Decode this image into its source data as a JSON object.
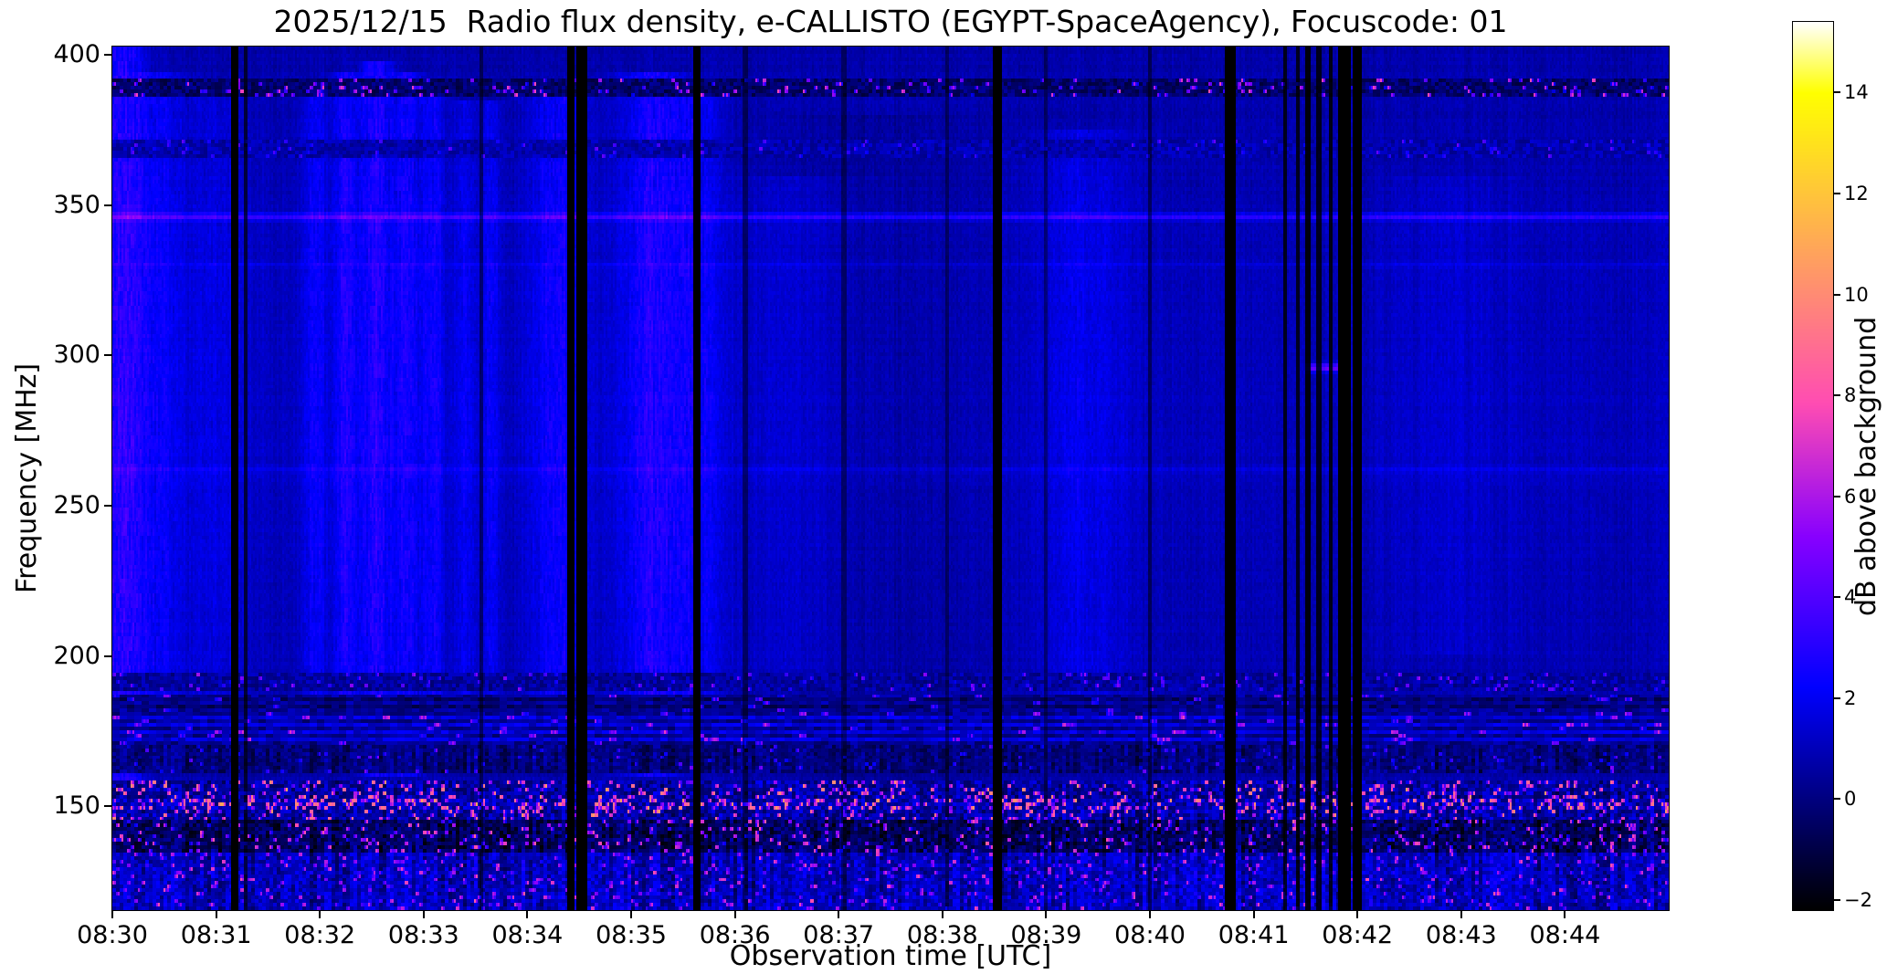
{
  "chart_data": {
    "type": "heatmap",
    "title": "2025/12/15  Radio flux density, e-CALLISTO (EGYPT-SpaceAgency), Focuscode: 01",
    "xlabel": "Observation time [UTC]",
    "ylabel": "Frequency [MHz]",
    "x_ticks": [
      "08:30",
      "08:31",
      "08:32",
      "08:33",
      "08:34",
      "08:35",
      "08:36",
      "08:37",
      "08:38",
      "08:39",
      "08:40",
      "08:41",
      "08:42",
      "08:43",
      "08:44"
    ],
    "x_axis": {
      "start_utc": "08:30",
      "end_utc": "08:45",
      "minutes": 15
    },
    "y_axis": {
      "min_mhz": 115.4,
      "max_mhz": 402.8,
      "ticks": [
        400,
        350,
        300,
        250,
        200,
        150
      ],
      "orientation": "high frequency at top"
    },
    "colorbar": {
      "label": "dB above background",
      "ticks": [
        14,
        12,
        10,
        8,
        6,
        4,
        2,
        0,
        -2
      ],
      "min": -2.2,
      "max": 15.4,
      "colormap": "gnuplot2"
    },
    "grid": false,
    "legend": false,
    "background_db": 0.55,
    "features": {
      "midband_boost_db": 0.45,
      "vertical_bands": [
        {
          "t": 0.1,
          "w": 0.22,
          "amp": 2.0,
          "f0": 130,
          "f1": 403
        },
        {
          "t": 0.45,
          "w": 0.25,
          "amp": 1.0,
          "f0": 170,
          "f1": 395
        },
        {
          "t": 1.05,
          "w": 0.35,
          "amp": 0.7,
          "f0": 180,
          "f1": 390
        },
        {
          "t": 1.95,
          "w": 0.13,
          "amp": 1.2,
          "f0": 170,
          "f1": 392
        },
        {
          "t": 2.25,
          "w": 0.13,
          "amp": 1.6,
          "f0": 165,
          "f1": 395
        },
        {
          "t": 2.55,
          "w": 0.15,
          "amp": 1.9,
          "f0": 160,
          "f1": 398
        },
        {
          "t": 2.85,
          "w": 0.13,
          "amp": 1.6,
          "f0": 160,
          "f1": 395
        },
        {
          "t": 3.1,
          "w": 0.11,
          "amp": 1.3,
          "f0": 170,
          "f1": 390
        },
        {
          "t": 3.4,
          "w": 0.1,
          "amp": 1.1,
          "f0": 175,
          "f1": 385
        },
        {
          "t": 3.65,
          "w": 0.1,
          "amp": 1.2,
          "f0": 175,
          "f1": 385
        },
        {
          "t": 4.3,
          "w": 0.28,
          "amp": 1.4,
          "f0": 165,
          "f1": 392
        },
        {
          "t": 5.2,
          "w": 0.32,
          "amp": 1.7,
          "f0": 160,
          "f1": 395
        },
        {
          "t": 5.65,
          "w": 0.25,
          "amp": 1.1,
          "f0": 170,
          "f1": 390
        },
        {
          "t": 6.6,
          "w": 0.6,
          "amp": 0.5,
          "f0": 195,
          "f1": 360
        },
        {
          "t": 7.4,
          "w": 0.9,
          "amp": -0.35,
          "f0": 150,
          "f1": 380
        },
        {
          "t": 9.35,
          "w": 0.45,
          "amp": 0.9,
          "f0": 175,
          "f1": 375
        },
        {
          "t": 12.9,
          "w": 0.6,
          "amp": 0.35,
          "f0": 200,
          "f1": 360
        }
      ],
      "horizontal_lines": [
        {
          "f": 346,
          "w": 1.2,
          "amp": 2.0,
          "t0": 0,
          "t1": 15
        },
        {
          "f": 330,
          "w": 1.0,
          "amp": 0.6,
          "t0": 0,
          "t1": 15
        },
        {
          "f": 262,
          "w": 1.2,
          "amp": 0.5,
          "t0": 0,
          "t1": 15
        },
        {
          "f": 296,
          "w": 1.3,
          "amp": 3.5,
          "t0": 11.5,
          "t1": 11.85
        }
      ],
      "noise_bands": [
        {
          "f0": 386,
          "f1": 392.5,
          "mean": -0.6,
          "noise": 1.8,
          "dash": 1,
          "spike_prob": 0.1,
          "spike": 6.5
        },
        {
          "f0": 366,
          "f1": 372,
          "mean": 0.6,
          "noise": 1.4,
          "dash": 1,
          "spike_prob": 0.05,
          "spike": 3.0
        },
        {
          "f0": 188,
          "f1": 194,
          "mean": 0.3,
          "noise": 1.6,
          "dash": 1,
          "spike_prob": 0.07,
          "spike": 4.0
        },
        {
          "f0": 181,
          "f1": 187,
          "mean": -0.2,
          "noise": 1.6,
          "dash": 2,
          "spike_prob": 0.05,
          "spike": 4.0,
          "rowstripe": 0.5
        },
        {
          "f0": 171,
          "f1": 181,
          "mean": 0.7,
          "noise": 1.6,
          "dash": 2,
          "spike_prob": 0.06,
          "spike": 4.5,
          "rowstripe": 0.9
        },
        {
          "f0": 161,
          "f1": 171,
          "mean": -0.3,
          "noise": 1.5,
          "dash": 1,
          "spike_prob": 0.04,
          "spike": 3.5,
          "colstripe": 0.8
        },
        {
          "f0": 148.5,
          "f1": 152,
          "mean": 0.5,
          "noise": 2.5,
          "dash": 1,
          "spike_prob": 0.3,
          "spike": 8.0
        },
        {
          "f0": 145,
          "f1": 158,
          "mean": 0.2,
          "noise": 2.4,
          "dash": 1,
          "spike_prob": 0.16,
          "spike": 8.0,
          "colstripe": 0.6
        },
        {
          "f0": 134,
          "f1": 145,
          "mean": -0.9,
          "noise": 2.2,
          "dash": 1,
          "spike_prob": 0.11,
          "spike": 7.0,
          "colstripe": 0.8
        },
        {
          "f0": 115,
          "f1": 134,
          "mean": 0.7,
          "noise": 2.0,
          "dash": 1,
          "spike_prob": 0.09,
          "spike": 5.0,
          "colstripe": 1.0
        }
      ],
      "time_gaps": [
        {
          "t": 1.18,
          "w": 0.03,
          "depth": 1
        },
        {
          "t": 1.28,
          "w": 0.02,
          "depth": 0.7
        },
        {
          "t": 3.55,
          "w": 0.02,
          "depth": 0.5
        },
        {
          "t": 4.42,
          "w": 0.03,
          "depth": 1
        },
        {
          "t": 4.53,
          "w": 0.05,
          "depth": 1
        },
        {
          "t": 5.63,
          "w": 0.04,
          "depth": 1
        },
        {
          "t": 6.1,
          "w": 0.02,
          "depth": 0.45
        },
        {
          "t": 7.05,
          "w": 0.02,
          "depth": 0.4
        },
        {
          "t": 8.05,
          "w": 0.02,
          "depth": 0.4
        },
        {
          "t": 8.53,
          "w": 0.045,
          "depth": 1
        },
        {
          "t": 9.0,
          "w": 0.02,
          "depth": 0.4
        },
        {
          "t": 10.0,
          "w": 0.02,
          "depth": 0.5
        },
        {
          "t": 10.78,
          "w": 0.05,
          "depth": 1
        },
        {
          "t": 11.3,
          "w": 0.02,
          "depth": 0.8
        },
        {
          "t": 11.42,
          "w": 0.02,
          "depth": 0.8
        },
        {
          "t": 11.52,
          "w": 0.025,
          "depth": 0.9
        },
        {
          "t": 11.63,
          "w": 0.02,
          "depth": 0.8
        },
        {
          "t": 11.74,
          "w": 0.02,
          "depth": 0.85
        },
        {
          "t": 11.88,
          "w": 0.06,
          "depth": 1
        },
        {
          "t": 12.0,
          "w": 0.05,
          "depth": 1
        }
      ]
    }
  }
}
